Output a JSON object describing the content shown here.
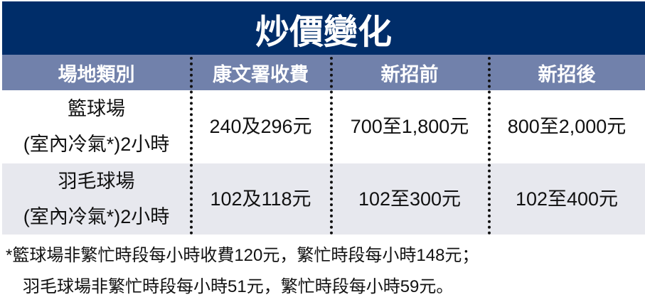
{
  "title": "炒價變化",
  "colors": {
    "title_bg": "#002d69",
    "header_bg": "#7181ab",
    "row_alt_bg": "#e7e8ee"
  },
  "table": {
    "headers": [
      "場地類別",
      "康文署收費",
      "新招前",
      "新招後"
    ],
    "rows": [
      {
        "venue": "籃球場",
        "venue_detail": "(室內冷氣*)2小時",
        "lcsd": "240及296元",
        "before": "700至1,800元",
        "after": "800至2,000元"
      },
      {
        "venue": "羽毛球場",
        "venue_detail": "(室內冷氣*)2小時",
        "lcsd": "102及118元",
        "before": "102至300元",
        "after": "102至400元"
      }
    ]
  },
  "footnote": {
    "line1": "*籃球場非繁忙時段每小時收費120元，繁忙時段每小時148元；",
    "line2": "羽毛球場非繁忙時段每小時51元，繁忙時段每小時59元。"
  }
}
